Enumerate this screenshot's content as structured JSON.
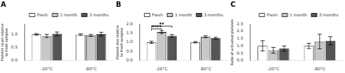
{
  "chart_data": [
    {
      "type": "bar",
      "title": "A",
      "ylabel": "Platelet count relative\nto fresh samples",
      "categories": [
        "-20°C",
        "-80°C"
      ],
      "series": [
        {
          "name": "Fresh",
          "color": "white",
          "values": [
            1.0,
            0.99
          ],
          "errors": [
            0.03,
            0.03
          ]
        },
        {
          "name": "1 month",
          "color": "#c8c8c8",
          "values": [
            0.94,
            0.96
          ],
          "errors": [
            0.06,
            0.04
          ]
        },
        {
          "name": "3 months",
          "color": "#555555",
          "values": [
            1.02,
            1.01
          ],
          "errors": [
            0.07,
            0.07
          ]
        }
      ],
      "ylim": [
        0.0,
        1.4
      ],
      "yticks": [
        {
          "value": 0.0,
          "label": "0.0"
        },
        0.5,
        {
          "value": 1.0,
          "label": "1.0"
        }
      ],
      "grid": false,
      "legend": "upper right"
    },
    {
      "type": "bar",
      "title": "B",
      "ylabel": "Platelet size relative\nto Fresh samples",
      "categories": [
        "-20°C",
        "-80°C"
      ],
      "series": [
        {
          "name": "Fresh",
          "color": "white",
          "values": [
            1.0,
            1.0
          ],
          "errors": [
            0.06,
            0.04
          ]
        },
        {
          "name": "1 month",
          "color": "#c8c8c8",
          "values": [
            1.55,
            1.3
          ],
          "errors": [
            0.08,
            0.05
          ]
        },
        {
          "name": "3 months",
          "color": "#555555",
          "values": [
            1.35,
            1.22
          ],
          "errors": [
            0.07,
            0.05
          ]
        }
      ],
      "ylim": [
        0.0,
        2.0
      ],
      "yticks": [
        {
          "value": 0.0,
          "label": "0.0"
        },
        0.5,
        {
          "value": 1.0,
          "label": "1.0"
        },
        1.5,
        {
          "value": 2.0,
          "label": "2.0"
        }
      ],
      "annotations": [
        {
          "text": "****",
          "y": 1.73,
          "category": "-20°C",
          "from": "Fresh",
          "to": "1 month"
        },
        {
          "text": "**",
          "y": 1.88,
          "category": "-20°C",
          "from": "Fresh",
          "to": "3 months"
        }
      ],
      "grid": false,
      "legend": "upper right"
    },
    {
      "type": "bar",
      "title": "C",
      "ylabel": "Ratio of activated platelets",
      "categories": [
        "-20°C",
        "-80°C"
      ],
      "series": [
        {
          "name": "Fresh",
          "color": "white",
          "values": [
            1.0,
            1.0
          ],
          "errors": [
            0.35,
            0.18
          ]
        },
        {
          "name": "1 month",
          "color": "#c8c8c8",
          "values": [
            0.7,
            1.3
          ],
          "errors": [
            0.2,
            0.5
          ]
        },
        {
          "name": "3 months",
          "color": "#555555",
          "values": [
            0.82,
            1.35
          ],
          "errors": [
            0.18,
            0.28
          ]
        }
      ],
      "ylim": [
        0.0,
        2.5
      ],
      "yticks": [
        {
          "value": 0.0,
          "label": "0.0"
        },
        0.5,
        {
          "value": 1.0,
          "label": "1.0"
        },
        1.5,
        {
          "value": 2.0,
          "label": "2.0"
        },
        2.5
      ],
      "grid": false,
      "legend": "upper right"
    }
  ]
}
